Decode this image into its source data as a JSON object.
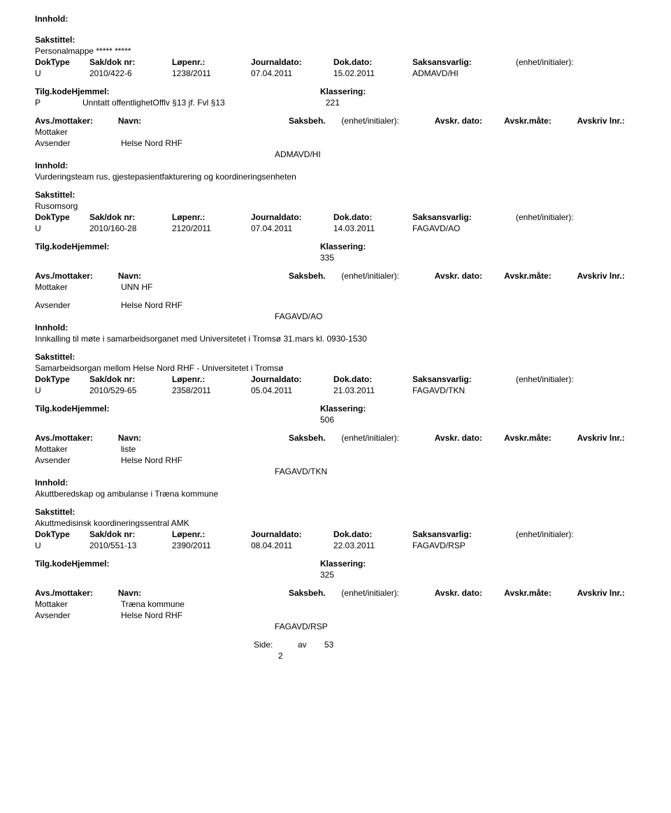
{
  "labels": {
    "innhold": "Innhold:",
    "sakstittel": "Sakstittel:",
    "doktype": "DokType",
    "sakdok": "Sak/dok nr:",
    "lopenr": "Løpenr.:",
    "journaldato": "Journaldato:",
    "dokdato": "Dok.dato:",
    "saksansvarlig": "Saksansvarlig:",
    "enhet": "(enhet/initialer):",
    "tilgkode": "Tilg.kodeHjemmel:",
    "klassering": "Klassering:",
    "avsmottaker": "Avs./mottaker:",
    "navn": "Navn:",
    "saksbeh": "Saksbeh.",
    "enhet2": "(enhet/initialer):",
    "avskrdato": "Avskr. dato:",
    "avskrmate": "Avskr.måte:",
    "avskrivlnr": "Avskriv lnr.:",
    "mottaker": "Mottaker",
    "avsender": "Avsender",
    "side": "Side:",
    "av": "av"
  },
  "records": [
    {
      "inn_top": true,
      "sakstittel": "Personalmappe ***** *****",
      "doktype": "U",
      "sakdok": "2010/422-6",
      "lopenr": "1238/2011",
      "jdato": "07.04.2011",
      "dokdato": "15.02.2011",
      "saks": "ADMAVD/HI",
      "unntatt": "Unntatt offentlighetOfflv §13 jf. Fvl §13",
      "klassering": "221",
      "prefix": "P",
      "mottaker_navn": "",
      "avsender_navn": "Helse Nord RHF",
      "beh": "ADMAVD/HI",
      "innhold_text": "Vurderingsteam rus, gjestepasientfakturering og koordineringsenheten"
    },
    {
      "sakstittel": "Rusomsorg",
      "doktype": "U",
      "sakdok": "2010/160-28",
      "lopenr": "2120/2011",
      "jdato": "07.04.2011",
      "dokdato": "14.03.2011",
      "saks": "FAGAVD/AO",
      "klassering": "335",
      "mottaker_navn": "UNN HF",
      "avsender_navn": "Helse Nord RHF",
      "beh": "FAGAVD/AO",
      "innhold_text": "Innkalling til møte i samarbeidsorganet med Universitetet i Tromsø 31.mars kl. 0930-1530"
    },
    {
      "sakstittel": "Samarbeidsorgan mellom Helse Nord RHF - Universitetet i Tromsø",
      "doktype": "U",
      "sakdok": "2010/529-65",
      "lopenr": "2358/2011",
      "jdato": "05.04.2011",
      "dokdato": "21.03.2011",
      "saks": "FAGAVD/TKN",
      "klassering": "506",
      "mottaker_navn": "liste",
      "avsender_navn": "Helse Nord RHF",
      "beh": "FAGAVD/TKN",
      "innhold_text": "Akuttberedskap og ambulanse i Træna kommune"
    },
    {
      "sakstittel": "Akuttmedisinsk koordineringssentral AMK",
      "doktype": "U",
      "sakdok": "2010/551-13",
      "lopenr": "2390/2011",
      "jdato": "08.04.2011",
      "dokdato": "22.03.2011",
      "saks": "FAGAVD/RSP",
      "klassering": "325",
      "mottaker_navn": "Træna kommune",
      "avsender_navn": "Helse Nord RHF",
      "beh": "FAGAVD/RSP",
      "innhold_text": ""
    }
  ],
  "footer": {
    "page": "2",
    "total": "53"
  },
  "layout": {
    "col_widths": {
      "doktype": 70,
      "sakdok": 110,
      "lopenr": 105,
      "jdato": 110,
      "dokdato": 105,
      "saks": 140,
      "enhet": 120
    },
    "klassering_indent": 400,
    "beh_indent": 335,
    "avs_label_w": 115,
    "navn_w": 245,
    "saksbeh_w": 70,
    "enhet2_w": 130,
    "avskrdato_w": 95,
    "avskrmate_w": 100,
    "avskrivlnr_w": 100,
    "mottaker_lbl_w": 115,
    "avsender_lbl_w": 115,
    "side_label_w": 305
  }
}
